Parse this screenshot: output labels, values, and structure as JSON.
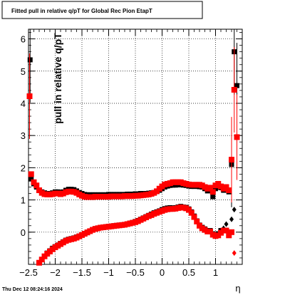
{
  "chart_data": {
    "type": "scatter",
    "title": "Fitted pull in relative q/pT for Global Rec Pion EtapT",
    "xlabel": "η",
    "ylabel": "pull in relative q/pT",
    "xlim": [
      -2.5,
      1.5
    ],
    "ylim": [
      -1.0,
      6.3
    ],
    "x_ticks": [
      "−2.5",
      "−2",
      "−1.5",
      "−1",
      "−0.5",
      "0",
      "0.5",
      "1"
    ],
    "x_tick_values": [
      -2.5,
      -2,
      -1.5,
      -1,
      -0.5,
      0,
      0.5,
      1
    ],
    "y_ticks": [
      "0",
      "1",
      "2",
      "3",
      "4",
      "5",
      "6"
    ],
    "y_tick_values": [
      0,
      1,
      2,
      3,
      4,
      5,
      6
    ],
    "grid": true,
    "legend": "none",
    "timestamp": "Thu Dec 12 08:24:16 2024",
    "series": [
      {
        "marker": "square",
        "color": "#000000",
        "sigma": [
          [
            -2.47,
            5.35
          ],
          [
            -2.45,
            1.65
          ],
          [
            -2.4,
            1.5
          ],
          [
            -2.35,
            1.4
          ],
          [
            -2.3,
            1.3
          ],
          [
            -2.25,
            1.25
          ],
          [
            -2.2,
            1.22
          ],
          [
            -2.15,
            1.2
          ],
          [
            -2.1,
            1.2
          ],
          [
            -2.05,
            1.22
          ],
          [
            -2.0,
            1.25
          ],
          [
            -1.95,
            1.25
          ],
          [
            -1.9,
            1.23
          ],
          [
            -1.85,
            1.25
          ],
          [
            -1.8,
            1.3
          ],
          [
            -1.75,
            1.33
          ],
          [
            -1.7,
            1.33
          ],
          [
            -1.65,
            1.32
          ],
          [
            -1.6,
            1.28
          ],
          [
            -1.55,
            1.23
          ],
          [
            -1.5,
            1.2
          ],
          [
            -1.45,
            1.17
          ],
          [
            -1.4,
            1.16
          ],
          [
            -1.35,
            1.16
          ],
          [
            -1.3,
            1.16
          ],
          [
            -1.25,
            1.16
          ],
          [
            -1.2,
            1.16
          ],
          [
            -1.15,
            1.16
          ],
          [
            -1.1,
            1.16
          ],
          [
            -1.05,
            1.16
          ],
          [
            -1.0,
            1.17
          ],
          [
            -0.95,
            1.17
          ],
          [
            -0.9,
            1.17
          ],
          [
            -0.85,
            1.17
          ],
          [
            -0.8,
            1.17
          ],
          [
            -0.75,
            1.17
          ],
          [
            -0.7,
            1.17
          ],
          [
            -0.65,
            1.18
          ],
          [
            -0.6,
            1.18
          ],
          [
            -0.55,
            1.18
          ],
          [
            -0.5,
            1.19
          ],
          [
            -0.45,
            1.19
          ],
          [
            -0.4,
            1.2
          ],
          [
            -0.35,
            1.2
          ],
          [
            -0.3,
            1.2
          ],
          [
            -0.25,
            1.21
          ],
          [
            -0.2,
            1.22
          ],
          [
            -0.15,
            1.23
          ],
          [
            -0.1,
            1.26
          ],
          [
            -0.05,
            1.3
          ],
          [
            0.0,
            1.35
          ],
          [
            0.05,
            1.4
          ],
          [
            0.1,
            1.43
          ],
          [
            0.15,
            1.45
          ],
          [
            0.2,
            1.46
          ],
          [
            0.25,
            1.46
          ],
          [
            0.3,
            1.47
          ],
          [
            0.35,
            1.47
          ],
          [
            0.4,
            1.46
          ],
          [
            0.45,
            1.45
          ],
          [
            0.5,
            1.43
          ],
          [
            0.55,
            1.42
          ],
          [
            0.6,
            1.42
          ],
          [
            0.65,
            1.42
          ],
          [
            0.7,
            1.41
          ],
          [
            0.75,
            1.4
          ],
          [
            0.8,
            1.35
          ],
          [
            0.85,
            1.28
          ],
          [
            0.9,
            1.3
          ],
          [
            0.95,
            1.1
          ],
          [
            1.0,
            1.35
          ],
          [
            1.05,
            1.4
          ],
          [
            1.1,
            1.38
          ],
          [
            1.15,
            1.3
          ],
          [
            1.2,
            1.38
          ],
          [
            1.25,
            1.25
          ],
          [
            1.3,
            2.1
          ],
          [
            1.35,
            5.6
          ],
          [
            1.4,
            4.55
          ]
        ],
        "mean": [
          [
            -2.3,
            -0.95
          ],
          [
            -2.25,
            -0.85
          ],
          [
            -2.2,
            -0.75
          ],
          [
            -2.15,
            -0.65
          ],
          [
            -2.1,
            -0.58
          ],
          [
            -2.05,
            -0.5
          ],
          [
            -2.0,
            -0.45
          ],
          [
            -1.95,
            -0.4
          ],
          [
            -1.9,
            -0.35
          ],
          [
            -1.85,
            -0.3
          ],
          [
            -1.8,
            -0.25
          ],
          [
            -1.75,
            -0.22
          ],
          [
            -1.7,
            -0.2
          ],
          [
            -1.65,
            -0.18
          ],
          [
            -1.6,
            -0.15
          ],
          [
            -1.55,
            -0.12
          ],
          [
            -1.5,
            -0.08
          ],
          [
            -1.45,
            -0.04
          ],
          [
            -1.4,
            0.0
          ],
          [
            -1.35,
            0.04
          ],
          [
            -1.3,
            0.08
          ],
          [
            -1.25,
            0.11
          ],
          [
            -1.2,
            0.13
          ],
          [
            -1.15,
            0.15
          ],
          [
            -1.1,
            0.16
          ],
          [
            -1.05,
            0.17
          ],
          [
            -1.0,
            0.18
          ],
          [
            -0.95,
            0.19
          ],
          [
            -0.9,
            0.2
          ],
          [
            -0.85,
            0.21
          ],
          [
            -0.8,
            0.22
          ],
          [
            -0.75,
            0.23
          ],
          [
            -0.7,
            0.24
          ],
          [
            -0.65,
            0.26
          ],
          [
            -0.6,
            0.28
          ],
          [
            -0.55,
            0.3
          ],
          [
            -0.5,
            0.33
          ],
          [
            -0.45,
            0.36
          ],
          [
            -0.4,
            0.4
          ],
          [
            -0.35,
            0.44
          ],
          [
            -0.3,
            0.48
          ],
          [
            -0.25,
            0.52
          ],
          [
            -0.2,
            0.56
          ],
          [
            -0.15,
            0.6
          ],
          [
            -0.1,
            0.63
          ],
          [
            -0.05,
            0.66
          ],
          [
            0.0,
            0.7
          ],
          [
            0.05,
            0.73
          ],
          [
            0.1,
            0.75
          ],
          [
            0.15,
            0.76
          ],
          [
            0.2,
            0.75
          ],
          [
            0.25,
            0.76
          ],
          [
            0.3,
            0.78
          ],
          [
            0.35,
            0.8
          ],
          [
            0.4,
            0.78
          ],
          [
            0.45,
            0.77
          ],
          [
            0.5,
            0.72
          ],
          [
            0.55,
            0.63
          ],
          [
            0.6,
            0.5
          ],
          [
            0.65,
            0.35
          ],
          [
            0.7,
            0.22
          ],
          [
            0.75,
            0.15
          ],
          [
            0.8,
            0.1
          ],
          [
            0.85,
            0.05
          ],
          [
            0.9,
            0.05
          ],
          [
            0.95,
            -0.05
          ],
          [
            1.0,
            -0.1
          ],
          [
            1.05,
            -0.05
          ],
          [
            1.1,
            0.05
          ],
          [
            1.15,
            0.12
          ],
          [
            1.2,
            0.25
          ],
          [
            1.25,
            0.0
          ],
          [
            1.3,
            0.4
          ],
          [
            1.35,
            0.7
          ]
        ]
      },
      {
        "marker": "square",
        "color": "#ff0000",
        "sigma": [
          [
            -2.48,
            4.22
          ],
          [
            -2.45,
            1.8
          ],
          [
            -2.4,
            1.55
          ],
          [
            -2.35,
            1.45
          ],
          [
            -2.3,
            1.3
          ],
          [
            -2.25,
            1.22
          ],
          [
            -2.2,
            1.18
          ],
          [
            -2.15,
            1.17
          ],
          [
            -2.1,
            1.17
          ],
          [
            -2.05,
            1.18
          ],
          [
            -2.0,
            1.2
          ],
          [
            -1.95,
            1.2
          ],
          [
            -1.9,
            1.18
          ],
          [
            -1.85,
            1.2
          ],
          [
            -1.8,
            1.24
          ],
          [
            -1.75,
            1.26
          ],
          [
            -1.7,
            1.26
          ],
          [
            -1.65,
            1.25
          ],
          [
            -1.6,
            1.22
          ],
          [
            -1.55,
            1.17
          ],
          [
            -1.5,
            1.13
          ],
          [
            -1.45,
            1.1
          ],
          [
            -1.4,
            1.09
          ],
          [
            -1.35,
            1.09
          ],
          [
            -1.3,
            1.09
          ],
          [
            -1.25,
            1.1
          ],
          [
            -1.2,
            1.1
          ],
          [
            -1.15,
            1.1
          ],
          [
            -1.1,
            1.1
          ],
          [
            -1.05,
            1.1
          ],
          [
            -1.0,
            1.1
          ],
          [
            -0.95,
            1.11
          ],
          [
            -0.9,
            1.11
          ],
          [
            -0.85,
            1.11
          ],
          [
            -0.8,
            1.11
          ],
          [
            -0.75,
            1.11
          ],
          [
            -0.7,
            1.12
          ],
          [
            -0.65,
            1.12
          ],
          [
            -0.6,
            1.12
          ],
          [
            -0.55,
            1.12
          ],
          [
            -0.5,
            1.13
          ],
          [
            -0.45,
            1.13
          ],
          [
            -0.4,
            1.14
          ],
          [
            -0.35,
            1.15
          ],
          [
            -0.3,
            1.16
          ],
          [
            -0.25,
            1.17
          ],
          [
            -0.2,
            1.19
          ],
          [
            -0.15,
            1.22
          ],
          [
            -0.1,
            1.27
          ],
          [
            -0.05,
            1.35
          ],
          [
            0.0,
            1.42
          ],
          [
            0.05,
            1.48
          ],
          [
            0.1,
            1.5
          ],
          [
            0.15,
            1.52
          ],
          [
            0.2,
            1.55
          ],
          [
            0.25,
            1.55
          ],
          [
            0.3,
            1.55
          ],
          [
            0.35,
            1.55
          ],
          [
            0.4,
            1.52
          ],
          [
            0.45,
            1.5
          ],
          [
            0.5,
            1.48
          ],
          [
            0.55,
            1.47
          ],
          [
            0.6,
            1.47
          ],
          [
            0.65,
            1.47
          ],
          [
            0.7,
            1.47
          ],
          [
            0.75,
            1.45
          ],
          [
            0.8,
            1.4
          ],
          [
            0.85,
            1.35
          ],
          [
            0.9,
            1.38
          ],
          [
            0.95,
            1.25
          ],
          [
            1.0,
            1.45
          ],
          [
            1.05,
            1.5
          ],
          [
            1.1,
            1.42
          ],
          [
            1.15,
            1.35
          ],
          [
            1.2,
            1.4
          ],
          [
            1.25,
            1.3
          ],
          [
            1.3,
            2.25
          ],
          [
            1.35,
            4.42
          ],
          [
            1.4,
            2.95
          ]
        ],
        "mean": [
          [
            -2.3,
            -0.95
          ],
          [
            -2.25,
            -0.85
          ],
          [
            -2.2,
            -0.75
          ],
          [
            -2.15,
            -0.67
          ],
          [
            -2.1,
            -0.6
          ],
          [
            -2.05,
            -0.53
          ],
          [
            -2.0,
            -0.47
          ],
          [
            -1.95,
            -0.42
          ],
          [
            -1.9,
            -0.37
          ],
          [
            -1.85,
            -0.32
          ],
          [
            -1.8,
            -0.27
          ],
          [
            -1.75,
            -0.24
          ],
          [
            -1.7,
            -0.22
          ],
          [
            -1.65,
            -0.2
          ],
          [
            -1.6,
            -0.17
          ],
          [
            -1.55,
            -0.13
          ],
          [
            -1.5,
            -0.09
          ],
          [
            -1.45,
            -0.05
          ],
          [
            -1.4,
            -0.01
          ],
          [
            -1.35,
            0.03
          ],
          [
            -1.3,
            0.07
          ],
          [
            -1.25,
            0.1
          ],
          [
            -1.2,
            0.12
          ],
          [
            -1.15,
            0.14
          ],
          [
            -1.1,
            0.15
          ],
          [
            -1.05,
            0.16
          ],
          [
            -1.0,
            0.17
          ],
          [
            -0.95,
            0.18
          ],
          [
            -0.9,
            0.19
          ],
          [
            -0.85,
            0.2
          ],
          [
            -0.8,
            0.21
          ],
          [
            -0.75,
            0.22
          ],
          [
            -0.7,
            0.23
          ],
          [
            -0.65,
            0.25
          ],
          [
            -0.6,
            0.27
          ],
          [
            -0.55,
            0.29
          ],
          [
            -0.5,
            0.31
          ],
          [
            -0.45,
            0.34
          ],
          [
            -0.4,
            0.38
          ],
          [
            -0.35,
            0.42
          ],
          [
            -0.3,
            0.46
          ],
          [
            -0.25,
            0.5
          ],
          [
            -0.2,
            0.53
          ],
          [
            -0.15,
            0.57
          ],
          [
            -0.1,
            0.6
          ],
          [
            -0.05,
            0.63
          ],
          [
            0.0,
            0.66
          ],
          [
            0.05,
            0.69
          ],
          [
            0.1,
            0.71
          ],
          [
            0.15,
            0.72
          ],
          [
            0.2,
            0.72
          ],
          [
            0.25,
            0.73
          ],
          [
            0.3,
            0.75
          ],
          [
            0.35,
            0.77
          ],
          [
            0.4,
            0.76
          ],
          [
            0.45,
            0.74
          ],
          [
            0.5,
            0.69
          ],
          [
            0.55,
            0.6
          ],
          [
            0.6,
            0.47
          ],
          [
            0.65,
            0.33
          ],
          [
            0.7,
            0.2
          ],
          [
            0.75,
            0.12
          ],
          [
            0.8,
            0.07
          ],
          [
            0.85,
            0.02
          ],
          [
            0.9,
            0.02
          ],
          [
            0.95,
            -0.08
          ],
          [
            1.0,
            -0.12
          ],
          [
            1.05,
            -0.1
          ],
          [
            1.1,
            -0.02
          ],
          [
            1.15,
            0.05
          ],
          [
            1.2,
            0.05
          ],
          [
            1.25,
            -0.1
          ],
          [
            1.3,
            0.0
          ],
          [
            1.35,
            -0.65
          ]
        ]
      }
    ]
  }
}
